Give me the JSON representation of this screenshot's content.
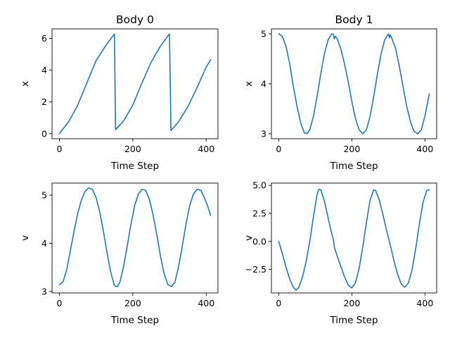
{
  "chart_data": [
    {
      "type": "line",
      "title": "Body 0",
      "xlabel": "Time Step",
      "ylabel": "x",
      "xlim": [
        -20,
        432
      ],
      "ylim": [
        -0.32,
        6.6
      ],
      "xticks": [
        0,
        200,
        400
      ],
      "yticks": [
        0,
        2,
        4,
        6
      ],
      "series": [
        {
          "color": "#1f77b4",
          "points": [
            [
              0,
              0
            ],
            [
              25,
              0.74
            ],
            [
              50,
              1.8
            ],
            [
              75,
              3.2
            ],
            [
              100,
              4.6
            ],
            [
              125,
              5.5
            ],
            [
              150,
              6.28
            ],
            [
              153,
              0.25
            ],
            [
              175,
              0.8
            ],
            [
              200,
              1.8
            ],
            [
              225,
              3.2
            ],
            [
              250,
              4.5
            ],
            [
              275,
              5.5
            ],
            [
              300,
              6.28
            ],
            [
              304,
              0.2
            ],
            [
              325,
              0.75
            ],
            [
              350,
              1.7
            ],
            [
              375,
              2.9
            ],
            [
              400,
              4.2
            ],
            [
              412,
              4.65
            ]
          ]
        }
      ]
    },
    {
      "type": "line",
      "title": "Body 1",
      "xlabel": "Time Step",
      "ylabel": "x",
      "xlim": [
        -20,
        432
      ],
      "ylim": [
        2.9,
        5.1
      ],
      "xticks": [
        0,
        200,
        400
      ],
      "yticks": [
        3,
        4,
        5
      ],
      "series": [
        {
          "color": "#1f77b4",
          "points": [
            [
              0,
              5
            ],
            [
              10,
              4.95
            ],
            [
              20,
              4.75
            ],
            [
              30,
              4.4
            ],
            [
              40,
              3.95
            ],
            [
              50,
              3.55
            ],
            [
              60,
              3.22
            ],
            [
              70,
              3.02
            ],
            [
              77,
              3
            ],
            [
              85,
              3.08
            ],
            [
              95,
              3.35
            ],
            [
              105,
              3.75
            ],
            [
              115,
              4.2
            ],
            [
              125,
              4.6
            ],
            [
              135,
              4.88
            ],
            [
              145,
              5
            ],
            [
              150,
              4.99
            ],
            [
              152,
              4.9
            ],
            [
              155,
              4.95
            ],
            [
              160,
              4.9
            ],
            [
              170,
              4.7
            ],
            [
              180,
              4.4
            ],
            [
              190,
              4.05
            ],
            [
              200,
              3.65
            ],
            [
              210,
              3.3
            ],
            [
              220,
              3.08
            ],
            [
              230,
              3
            ],
            [
              240,
              3.08
            ],
            [
              250,
              3.35
            ],
            [
              260,
              3.75
            ],
            [
              270,
              4.2
            ],
            [
              280,
              4.6
            ],
            [
              290,
              4.88
            ],
            [
              300,
              5
            ],
            [
              303,
              4.92
            ],
            [
              305,
              4.98
            ],
            [
              310,
              4.9
            ],
            [
              320,
              4.7
            ],
            [
              330,
              4.35
            ],
            [
              340,
              3.95
            ],
            [
              350,
              3.55
            ],
            [
              360,
              3.25
            ],
            [
              370,
              3.05
            ],
            [
              380,
              3
            ],
            [
              390,
              3.08
            ],
            [
              400,
              3.35
            ],
            [
              412,
              3.8
            ]
          ]
        }
      ]
    },
    {
      "type": "line",
      "title": "",
      "xlabel": "Time Step",
      "ylabel": "v",
      "xlim": [
        -20,
        432
      ],
      "ylim": [
        2.97,
        5.25
      ],
      "xticks": [
        0,
        200,
        400
      ],
      "yticks": [
        3,
        4,
        5
      ],
      "series": [
        {
          "color": "#1f77b4",
          "points": [
            [
              0,
              3.14
            ],
            [
              10,
              3.2
            ],
            [
              20,
              3.45
            ],
            [
              30,
              3.85
            ],
            [
              40,
              4.25
            ],
            [
              50,
              4.62
            ],
            [
              60,
              4.9
            ],
            [
              70,
              5.08
            ],
            [
              80,
              5.15
            ],
            [
              90,
              5.12
            ],
            [
              100,
              4.95
            ],
            [
              110,
              4.65
            ],
            [
              120,
              4.25
            ],
            [
              130,
              3.8
            ],
            [
              140,
              3.4
            ],
            [
              150,
              3.12
            ],
            [
              158,
              3.1
            ],
            [
              165,
              3.2
            ],
            [
              175,
              3.52
            ],
            [
              185,
              3.95
            ],
            [
              195,
              4.4
            ],
            [
              205,
              4.78
            ],
            [
              215,
              5.02
            ],
            [
              225,
              5.12
            ],
            [
              235,
              5.1
            ],
            [
              245,
              4.92
            ],
            [
              255,
              4.6
            ],
            [
              265,
              4.2
            ],
            [
              275,
              3.75
            ],
            [
              285,
              3.38
            ],
            [
              295,
              3.15
            ],
            [
              305,
              3.1
            ],
            [
              315,
              3.2
            ],
            [
              325,
              3.52
            ],
            [
              335,
              3.95
            ],
            [
              345,
              4.4
            ],
            [
              355,
              4.78
            ],
            [
              365,
              5.02
            ],
            [
              375,
              5.12
            ],
            [
              385,
              5.1
            ],
            [
              395,
              4.95
            ],
            [
              405,
              4.75
            ],
            [
              412,
              4.58
            ]
          ]
        }
      ]
    },
    {
      "type": "line",
      "title": "",
      "xlabel": "Time Step",
      "ylabel": "v",
      "xlim": [
        -20,
        432
      ],
      "ylim": [
        -4.6,
        5.2
      ],
      "xticks": [
        0,
        200,
        400
      ],
      "yticks": [
        -2.5,
        0,
        2.5,
        5
      ],
      "yticklabels": [
        "−2.5",
        "0.0",
        "2.5",
        "5.0"
      ],
      "series": [
        {
          "color": "#1f77b4",
          "points": [
            [
              0,
              0
            ],
            [
              10,
              -1.1
            ],
            [
              20,
              -2.3
            ],
            [
              30,
              -3.35
            ],
            [
              40,
              -4.1
            ],
            [
              48,
              -4.35
            ],
            [
              55,
              -4.1
            ],
            [
              65,
              -3.2
            ],
            [
              75,
              -1.8
            ],
            [
              85,
              0
            ],
            [
              95,
              2.2
            ],
            [
              105,
              4.2
            ],
            [
              110,
              4.65
            ],
            [
              115,
              4.6
            ],
            [
              125,
              3.6
            ],
            [
              135,
              2.1
            ],
            [
              145,
              0.7
            ],
            [
              150,
              0.1
            ],
            [
              152,
              -0.5
            ],
            [
              160,
              -1.3
            ],
            [
              170,
              -2.25
            ],
            [
              180,
              -3.15
            ],
            [
              190,
              -3.9
            ],
            [
              200,
              -4.15
            ],
            [
              210,
              -3.7
            ],
            [
              220,
              -2.4
            ],
            [
              230,
              -0.5
            ],
            [
              240,
              1.7
            ],
            [
              250,
              3.7
            ],
            [
              260,
              4.6
            ],
            [
              265,
              4.55
            ],
            [
              275,
              3.7
            ],
            [
              285,
              2.4
            ],
            [
              295,
              1
            ],
            [
              305,
              -0.3
            ],
            [
              315,
              -1.7
            ],
            [
              325,
              -2.9
            ],
            [
              335,
              -3.8
            ],
            [
              345,
              -4.1
            ],
            [
              355,
              -3.7
            ],
            [
              365,
              -2.5
            ],
            [
              375,
              -0.6
            ],
            [
              385,
              1.6
            ],
            [
              395,
              3.5
            ],
            [
              405,
              4.55
            ],
            [
              412,
              4.6
            ]
          ]
        }
      ]
    }
  ]
}
